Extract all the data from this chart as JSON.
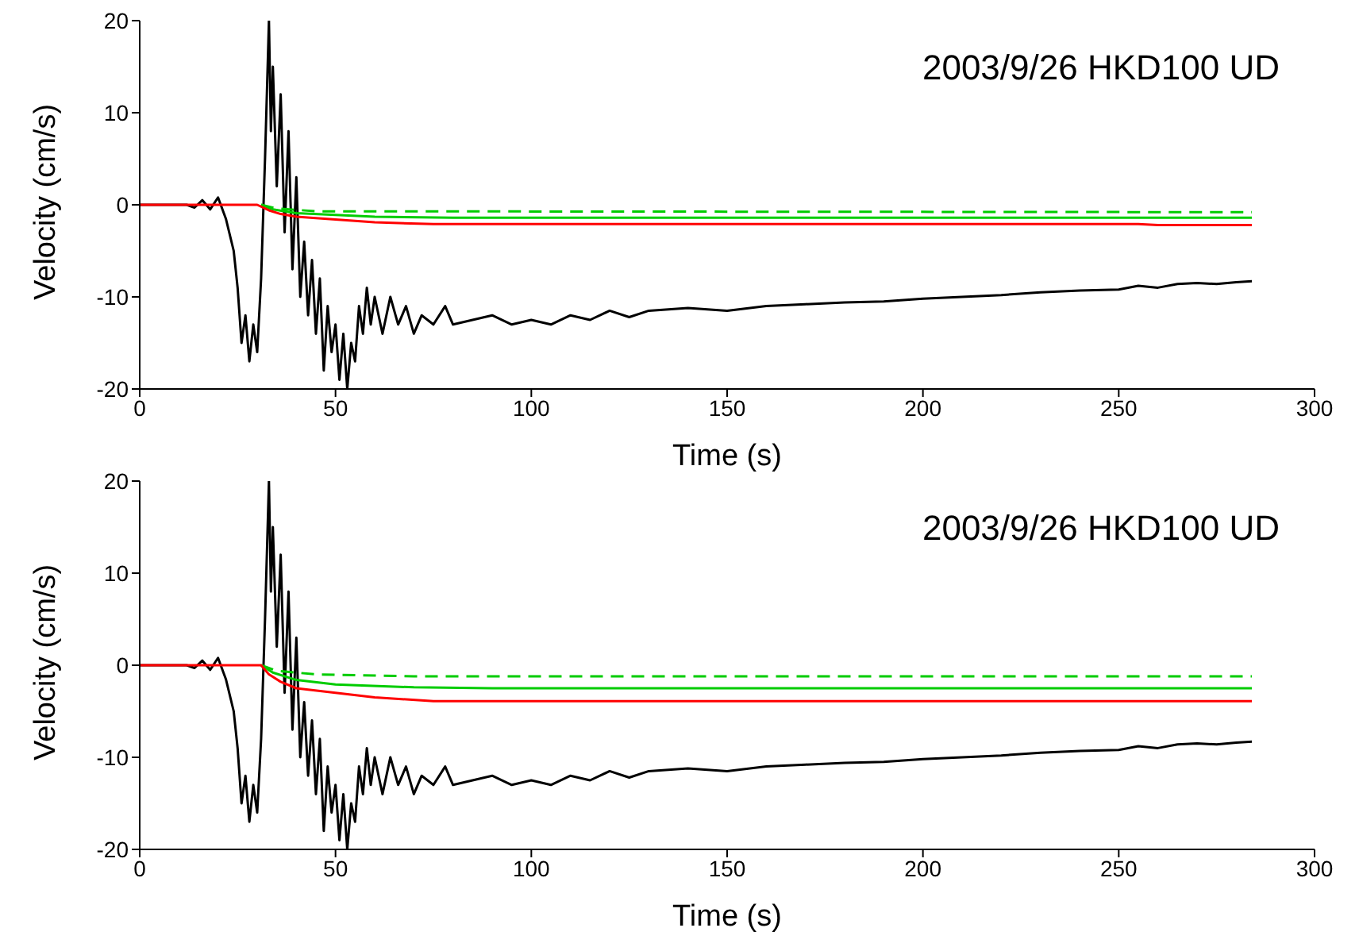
{
  "chart_data": [
    {
      "type": "line",
      "title": "2003/9/26 HKD100 UD",
      "xlabel": "Time (s)",
      "ylabel": "Velocity (cm/s)",
      "xlim": [
        0,
        300
      ],
      "xticks": [
        0,
        50,
        100,
        150,
        200,
        250,
        300
      ],
      "ylim": [
        -20,
        20
      ],
      "yticks": [
        -20,
        -10,
        0,
        10,
        20
      ],
      "grid": false,
      "legend": false,
      "marker": "none",
      "series": [
        {
          "color": "#000000",
          "line_style": "solid",
          "x": [
            0,
            12,
            14,
            16,
            18,
            20,
            22,
            24,
            25,
            26,
            27,
            28,
            29,
            30,
            31,
            32,
            33,
            33.5,
            34,
            35,
            36,
            37,
            38,
            39,
            40,
            41,
            42,
            43,
            44,
            45,
            46,
            47,
            48,
            49,
            50,
            51,
            52,
            53,
            54,
            55,
            56,
            57,
            58,
            59,
            60,
            62,
            64,
            66,
            68,
            70,
            72,
            75,
            78,
            80,
            85,
            90,
            95,
            100,
            105,
            110,
            115,
            120,
            125,
            130,
            140,
            150,
            160,
            170,
            180,
            190,
            200,
            210,
            220,
            230,
            240,
            250,
            255,
            260,
            265,
            270,
            275,
            280,
            284
          ],
          "values": [
            0,
            0,
            -0.3,
            0.5,
            -0.5,
            0.8,
            -1.5,
            -5,
            -9,
            -15,
            -12,
            -17,
            -13,
            -16,
            -8,
            5,
            20,
            8,
            15,
            2,
            12,
            -3,
            8,
            -7,
            3,
            -10,
            -4,
            -12,
            -6,
            -14,
            -8,
            -18,
            -11,
            -16,
            -13,
            -19,
            -14,
            -20,
            -15,
            -17,
            -11,
            -14,
            -9,
            -13,
            -10,
            -14,
            -10,
            -13,
            -11,
            -14,
            -12,
            -13,
            -11,
            -13,
            -12.5,
            -12,
            -13,
            -12.5,
            -13,
            -12,
            -12.5,
            -11.5,
            -12.2,
            -11.5,
            -11.2,
            -11.5,
            -11,
            -10.8,
            -10.6,
            -10.5,
            -10.2,
            -10,
            -9.8,
            -9.5,
            -9.3,
            -9.2,
            -8.8,
            -9,
            -8.6,
            -8.5,
            -8.6,
            -8.4,
            -8.3
          ]
        },
        {
          "color": "#00cc00",
          "line_style": "dashed",
          "x": [
            31,
            35,
            45,
            284
          ],
          "values": [
            0,
            -0.4,
            -0.7,
            -0.8
          ]
        },
        {
          "color": "#00cc00",
          "line_style": "solid",
          "x": [
            31,
            34,
            40,
            60,
            80,
            284
          ],
          "values": [
            0,
            -0.5,
            -0.9,
            -1.3,
            -1.4,
            -1.4
          ]
        },
        {
          "color": "#ff0000",
          "line_style": "solid",
          "x": [
            0,
            30,
            33,
            36,
            40,
            50,
            60,
            75,
            255,
            260,
            284
          ],
          "values": [
            0,
            0,
            -0.6,
            -1,
            -1.3,
            -1.6,
            -1.9,
            -2.1,
            -2.1,
            -2.2,
            -2.2
          ]
        }
      ]
    },
    {
      "type": "line",
      "title": "2003/9/26 HKD100 UD",
      "xlabel": "Time (s)",
      "ylabel": "Velocity (cm/s)",
      "xlim": [
        0,
        300
      ],
      "xticks": [
        0,
        50,
        100,
        150,
        200,
        250,
        300
      ],
      "ylim": [
        -20,
        20
      ],
      "yticks": [
        -20,
        -10,
        0,
        10,
        20
      ],
      "grid": false,
      "legend": false,
      "marker": "none",
      "series": [
        {
          "color": "#000000",
          "line_style": "solid",
          "x": [
            0,
            12,
            14,
            16,
            18,
            20,
            22,
            24,
            25,
            26,
            27,
            28,
            29,
            30,
            31,
            32,
            33,
            33.5,
            34,
            35,
            36,
            37,
            38,
            39,
            40,
            41,
            42,
            43,
            44,
            45,
            46,
            47,
            48,
            49,
            50,
            51,
            52,
            53,
            54,
            55,
            56,
            57,
            58,
            59,
            60,
            62,
            64,
            66,
            68,
            70,
            72,
            75,
            78,
            80,
            85,
            90,
            95,
            100,
            105,
            110,
            115,
            120,
            125,
            130,
            140,
            150,
            160,
            170,
            180,
            190,
            200,
            210,
            220,
            230,
            240,
            250,
            255,
            260,
            265,
            270,
            275,
            280,
            284
          ],
          "values": [
            0,
            0,
            -0.3,
            0.5,
            -0.5,
            0.8,
            -1.5,
            -5,
            -9,
            -15,
            -12,
            -17,
            -13,
            -16,
            -8,
            5,
            20,
            8,
            15,
            2,
            12,
            -3,
            8,
            -7,
            3,
            -10,
            -4,
            -12,
            -6,
            -14,
            -8,
            -18,
            -11,
            -16,
            -13,
            -19,
            -14,
            -20,
            -15,
            -17,
            -11,
            -14,
            -9,
            -13,
            -10,
            -14,
            -10,
            -13,
            -11,
            -14,
            -12,
            -13,
            -11,
            -13,
            -12.5,
            -12,
            -13,
            -12.5,
            -13,
            -12,
            -12.5,
            -11.5,
            -12.2,
            -11.5,
            -11.2,
            -11.5,
            -11,
            -10.8,
            -10.6,
            -10.5,
            -10.2,
            -10,
            -9.8,
            -9.5,
            -9.3,
            -9.2,
            -8.8,
            -9,
            -8.6,
            -8.5,
            -8.6,
            -8.4,
            -8.3
          ]
        },
        {
          "color": "#00cc00",
          "line_style": "dashed",
          "x": [
            31,
            35,
            45,
            70,
            284
          ],
          "values": [
            0,
            -0.6,
            -1,
            -1.2,
            -1.2
          ]
        },
        {
          "color": "#00cc00",
          "line_style": "solid",
          "x": [
            31,
            34,
            40,
            50,
            70,
            90,
            284
          ],
          "values": [
            0,
            -0.8,
            -1.6,
            -2.1,
            -2.4,
            -2.5,
            -2.5
          ]
        },
        {
          "color": "#ff0000",
          "line_style": "solid",
          "x": [
            0,
            31,
            33,
            36,
            40,
            50,
            60,
            75,
            284
          ],
          "values": [
            0,
            0,
            -1,
            -1.8,
            -2.5,
            -3,
            -3.5,
            -3.9,
            -3.9
          ]
        }
      ]
    }
  ]
}
